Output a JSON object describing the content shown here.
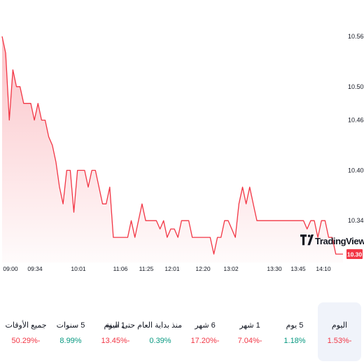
{
  "chart_data": {
    "type": "area",
    "x_ticks": [
      "09:00",
      "09:34",
      "10:01",
      "11:06",
      "11:25",
      "12:01",
      "12:20",
      "13:02",
      "13:30",
      "13:45",
      "14:10"
    ],
    "y_ticks": [
      "10.56",
      "10.50",
      "10.46",
      "10.40",
      "10.34"
    ],
    "y_tick_values": [
      10.56,
      10.5,
      10.46,
      10.4,
      10.34
    ],
    "ylim": [
      10.29,
      10.57
    ],
    "x_range": [
      0,
      95
    ],
    "last_price": "10.30",
    "values": [
      10.56,
      10.54,
      10.46,
      10.52,
      10.5,
      10.5,
      10.48,
      10.48,
      10.48,
      10.46,
      10.48,
      10.46,
      10.46,
      10.44,
      10.43,
      10.41,
      10.38,
      10.36,
      10.4,
      10.4,
      10.35,
      10.4,
      10.4,
      10.4,
      10.38,
      10.4,
      10.4,
      10.38,
      10.36,
      10.36,
      10.38,
      10.32,
      10.32,
      10.32,
      10.32,
      10.32,
      10.34,
      10.32,
      10.34,
      10.36,
      10.34,
      10.34,
      10.34,
      10.34,
      10.33,
      10.34,
      10.32,
      10.33,
      10.33,
      10.32,
      10.34,
      10.34,
      10.34,
      10.32,
      10.32,
      10.32,
      10.32,
      10.32,
      10.32,
      10.3,
      10.32,
      10.32,
      10.34,
      10.34,
      10.33,
      10.32,
      10.36,
      10.38,
      10.36,
      10.38,
      10.36,
      10.34,
      10.34,
      10.34,
      10.34,
      10.34,
      10.34,
      10.34,
      10.34,
      10.34,
      10.34,
      10.34,
      10.34,
      10.34,
      10.34,
      10.33,
      10.34,
      10.34,
      10.32,
      10.34,
      10.34,
      10.32,
      10.32,
      10.3,
      10.3,
      10.3
    ],
    "line_color": "#f23645",
    "grid": false,
    "brand": "TradingView",
    "brand_icon": "tradingview-logo"
  },
  "periods": [
    {
      "label": "اليوم",
      "value": "1.53%-",
      "trend": "negative",
      "active": true
    },
    {
      "label": "5 يوم",
      "value": "1.18%",
      "trend": "positive",
      "active": false
    },
    {
      "label": "1 شهر",
      "value": "7.04%-",
      "trend": "negative",
      "active": false
    },
    {
      "label": "6 شهر",
      "value": "17.20%-",
      "trend": "negative",
      "active": false
    },
    {
      "label": "منذ بداية العام حتى اليوم",
      "value": "0.39%",
      "trend": "positive",
      "active": false
    },
    {
      "label": "1 سنة",
      "value": "13.45%-",
      "trend": "negative",
      "active": false
    },
    {
      "label": "5 سنوات",
      "value": "8.99%",
      "trend": "positive",
      "active": false
    },
    {
      "label": "جميع الأوقات",
      "value": "50.29%-",
      "trend": "negative",
      "active": false
    }
  ]
}
